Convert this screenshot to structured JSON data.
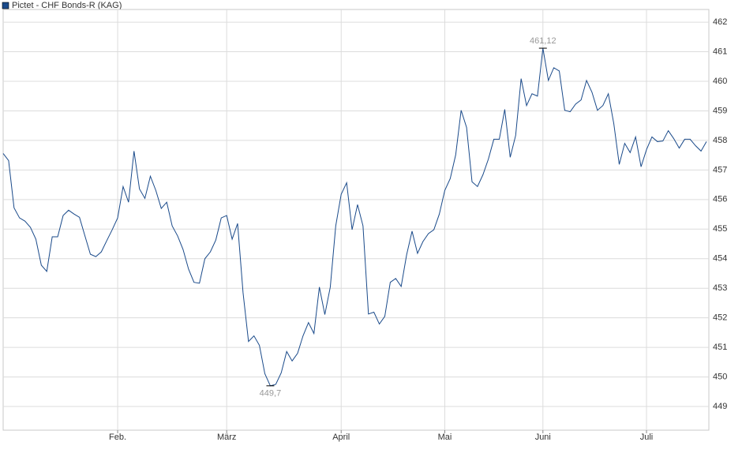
{
  "chart_data": {
    "type": "line",
    "series": [
      {
        "name": "Pictet - CHF Bonds-R (KAG)",
        "color": "#1a4a8a",
        "values": [
          457.56,
          457.32,
          455.72,
          455.38,
          455.27,
          455.06,
          454.66,
          453.78,
          453.57,
          454.74,
          454.74,
          455.46,
          455.64,
          455.51,
          455.4,
          454.77,
          454.15,
          454.07,
          454.23,
          454.61,
          454.98,
          455.38,
          456.44,
          455.91,
          457.64,
          456.36,
          456.04,
          456.79,
          456.31,
          455.7,
          455.91,
          455.11,
          454.77,
          454.31,
          453.65,
          453.2,
          453.17,
          454.0,
          454.23,
          454.63,
          455.38,
          455.46,
          454.66,
          455.19,
          452.85,
          451.2,
          451.39,
          451.07,
          450.11,
          449.7,
          449.75,
          450.14,
          450.86,
          450.54,
          450.8,
          451.39,
          451.84,
          451.47,
          453.04,
          452.11,
          453.04,
          455.11,
          456.18,
          456.57,
          454.98,
          455.83,
          455.11,
          452.13,
          452.19,
          451.79,
          452.05,
          453.2,
          453.33,
          453.06,
          454.13,
          454.93,
          454.18,
          454.58,
          454.85,
          454.98,
          455.51,
          456.31,
          456.71,
          457.51,
          459.02,
          458.44,
          456.6,
          456.44,
          456.84,
          457.37,
          458.04,
          458.04,
          459.05,
          457.43,
          458.17,
          460.09,
          459.18,
          459.58,
          459.5,
          461.12,
          460.03,
          460.46,
          460.35,
          459.02,
          458.97,
          459.23,
          459.37,
          460.03,
          459.63,
          459.02,
          459.18,
          459.58,
          458.57,
          457.19,
          457.9,
          457.59,
          458.12,
          457.11,
          457.69,
          458.12,
          457.96,
          457.98,
          458.33,
          458.06,
          457.74,
          458.04,
          458.04,
          457.82,
          457.64,
          457.96
        ]
      }
    ],
    "categories": [
      null,
      null,
      null,
      null,
      null,
      null,
      null,
      null,
      null,
      null,
      null,
      null,
      null,
      null,
      null,
      null,
      null,
      null,
      null,
      null,
      null,
      "Feb.",
      null,
      null,
      null,
      null,
      null,
      null,
      null,
      null,
      null,
      null,
      null,
      null,
      null,
      null,
      null,
      null,
      null,
      null,
      null,
      "März",
      null,
      null,
      null,
      null,
      null,
      null,
      null,
      null,
      null,
      null,
      null,
      null,
      null,
      null,
      null,
      null,
      null,
      null,
      null,
      null,
      "April",
      null,
      null,
      null,
      null,
      null,
      null,
      null,
      null,
      null,
      null,
      null,
      null,
      null,
      null,
      null,
      null,
      null,
      null,
      "Mai",
      null,
      null,
      null,
      null,
      null,
      null,
      null,
      null,
      null,
      null,
      null,
      null,
      null,
      null,
      null,
      null,
      null,
      "Juni",
      null,
      null,
      null,
      null,
      null,
      null,
      null,
      null,
      null,
      null,
      null,
      null,
      null,
      null,
      null,
      null,
      null,
      null,
      "Juli",
      null,
      null,
      null,
      null,
      null,
      null,
      null,
      null,
      null,
      null,
      null
    ],
    "annotations": [
      {
        "label": "461,12",
        "value": 461.12
      },
      {
        "label": "449,7",
        "value": 449.7
      }
    ],
    "ylim": [
      448.2,
      462.43
    ],
    "yticks": [
      449,
      450,
      451,
      452,
      453,
      454,
      455,
      456,
      457,
      458,
      459,
      460,
      461,
      462
    ],
    "grid": true
  }
}
